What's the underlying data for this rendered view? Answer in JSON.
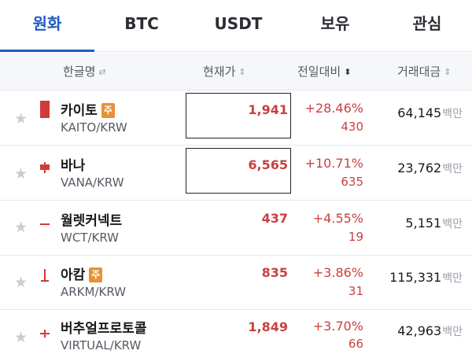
{
  "tabs": [
    {
      "label": "원화"
    },
    {
      "label": "BTC"
    },
    {
      "label": "USDT"
    },
    {
      "label": "보유"
    },
    {
      "label": "관심"
    }
  ],
  "columns": {
    "name": "한글명",
    "price": "현재가",
    "change": "전일대비",
    "volume": "거래대금"
  },
  "volume_unit": "백만",
  "rows": [
    {
      "name": "카이토",
      "badge": "주",
      "pair": "KAITO/KRW",
      "price": "1,941",
      "rate": "+28.46%",
      "delta": "430",
      "volume": "64,145"
    },
    {
      "name": "바나",
      "badge": "",
      "pair": "VANA/KRW",
      "price": "6,565",
      "rate": "+10.71%",
      "delta": "635",
      "volume": "23,762"
    },
    {
      "name": "월렛커넥트",
      "badge": "",
      "pair": "WCT/KRW",
      "price": "437",
      "rate": "+4.55%",
      "delta": "19",
      "volume": "5,151"
    },
    {
      "name": "아캄",
      "badge": "주",
      "pair": "ARKM/KRW",
      "price": "835",
      "rate": "+3.86%",
      "delta": "31",
      "volume": "115,331"
    },
    {
      "name": "버추얼프로토콜",
      "badge": "",
      "pair": "VIRTUAL/KRW",
      "price": "1,849",
      "rate": "+3.70%",
      "delta": "66",
      "volume": "42,963"
    }
  ],
  "colors": {
    "accent": "#1d5bbf",
    "rise": "#c94040",
    "badge": "#e69138"
  },
  "icons": {
    "favorite": "star-icon",
    "sort": "sort-icon"
  }
}
